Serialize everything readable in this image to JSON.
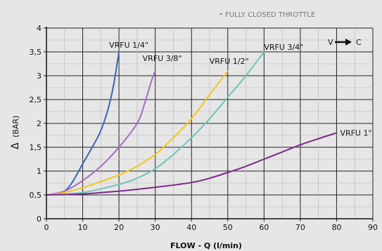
{
  "chart_data": {
    "type": "line",
    "note": "FULLY CLOSED THROTTLE",
    "xlabel": "FLOW - Q (l/min)",
    "ylabel": "(BAR)",
    "ylabel_symbol": "Δ",
    "direction": {
      "from": "V",
      "to": "C"
    },
    "xlim": [
      0,
      90
    ],
    "ylim": [
      0,
      4
    ],
    "x_ticks": [
      "0",
      "10",
      "20",
      "30",
      "40",
      "50",
      "60",
      "70",
      "80",
      "90"
    ],
    "y_ticks": [
      "0",
      "0,5",
      "1",
      "1,5",
      "2",
      "2,5",
      "3",
      "3,5",
      "4"
    ],
    "grid": true,
    "series": [
      {
        "name": "VRFU 1/4\"",
        "color": "#3a66b8",
        "points": [
          [
            0,
            0.5
          ],
          [
            3,
            0.53
          ],
          [
            5,
            0.58
          ],
          [
            7,
            0.75
          ],
          [
            10,
            1.15
          ],
          [
            13,
            1.55
          ],
          [
            15,
            1.85
          ],
          [
            17,
            2.3
          ],
          [
            18.5,
            2.8
          ],
          [
            20,
            3.5
          ]
        ]
      },
      {
        "name": "VRFU 3/8\"",
        "color": "#a46cc2",
        "points": [
          [
            0,
            0.5
          ],
          [
            5,
            0.58
          ],
          [
            10,
            0.8
          ],
          [
            15,
            1.1
          ],
          [
            20,
            1.5
          ],
          [
            25,
            2.0
          ],
          [
            27,
            2.4
          ],
          [
            29,
            2.9
          ],
          [
            30,
            3.1
          ]
        ]
      },
      {
        "name": "VRFU 1/2\"",
        "color": "#f5c518",
        "points": [
          [
            0,
            0.5
          ],
          [
            5,
            0.55
          ],
          [
            10,
            0.65
          ],
          [
            15,
            0.78
          ],
          [
            20,
            0.92
          ],
          [
            25,
            1.1
          ],
          [
            30,
            1.35
          ],
          [
            35,
            1.7
          ],
          [
            40,
            2.1
          ],
          [
            45,
            2.6
          ],
          [
            50,
            3.1
          ]
        ]
      },
      {
        "name": "VRFU 3/4\"",
        "color": "#6fc4bc",
        "points": [
          [
            0,
            0.5
          ],
          [
            10,
            0.55
          ],
          [
            20,
            0.72
          ],
          [
            25,
            0.85
          ],
          [
            30,
            1.05
          ],
          [
            35,
            1.35
          ],
          [
            40,
            1.7
          ],
          [
            45,
            2.1
          ],
          [
            50,
            2.55
          ],
          [
            55,
            3.0
          ],
          [
            60,
            3.5
          ]
        ]
      },
      {
        "name": "VRFU 1\"",
        "color": "#7a2a8a",
        "points": [
          [
            0,
            0.5
          ],
          [
            10,
            0.52
          ],
          [
            20,
            0.58
          ],
          [
            30,
            0.66
          ],
          [
            40,
            0.76
          ],
          [
            45,
            0.85
          ],
          [
            50,
            0.97
          ],
          [
            55,
            1.1
          ],
          [
            60,
            1.25
          ],
          [
            65,
            1.4
          ],
          [
            70,
            1.55
          ],
          [
            75,
            1.68
          ],
          [
            80,
            1.8
          ]
        ]
      }
    ]
  }
}
